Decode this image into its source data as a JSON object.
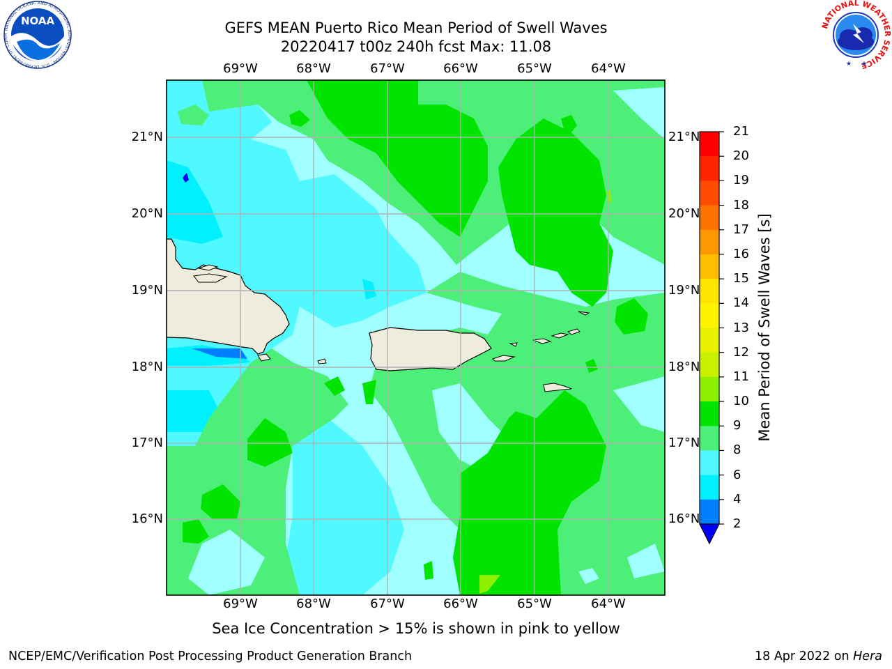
{
  "header": {
    "title_line1": "GEFS MEAN Puerto Rico Mean Period of Swell Waves",
    "title_line2": "20220417 t00z 240h fcst   Max: 11.08"
  },
  "map": {
    "lon_labels": [
      "69°W",
      "68°W",
      "67°W",
      "66°W",
      "65°W",
      "64°W"
    ],
    "lat_labels": [
      "21°N",
      "20°N",
      "19°N",
      "18°N",
      "17°N",
      "16°N"
    ],
    "land_color": "#eeecdc",
    "grid_color": "#b0b0b0"
  },
  "colorbar": {
    "label": "Mean Period of Swell Waves [s]",
    "ticks": [
      "21",
      "20",
      "19",
      "18",
      "17",
      "16",
      "15",
      "14",
      "13",
      "12",
      "11",
      "10",
      "9",
      "8",
      "6",
      "4",
      "2"
    ],
    "colors": [
      "#ff0000",
      "#ff2600",
      "#ff4c00",
      "#ff7200",
      "#ff9800",
      "#ffbe00",
      "#ffe400",
      "#fff400",
      "#e6f000",
      "#c8f000",
      "#8ef000",
      "#00e400",
      "#4cf078",
      "#a0ffff",
      "#50f8ff",
      "#00f0ff",
      "#0080ff",
      "#0000ff"
    ]
  },
  "note": "Sea Ice Concentration > 15% is shown in pink to yellow",
  "footer": {
    "left": "NCEP/EMC/Verification Post Processing Product Generation Branch",
    "right_date": "18 Apr 2022 on ",
    "right_host": "Hera"
  },
  "logos": {
    "noaa_text": "NOAA",
    "noaa_ring": "NATIONAL OCEANIC AND ATMOSPHERIC ADMINISTRATION · U.S. DEPARTMENT OF COMMERCE",
    "nws_ring": "NATIONAL WEATHER SERVICE"
  }
}
